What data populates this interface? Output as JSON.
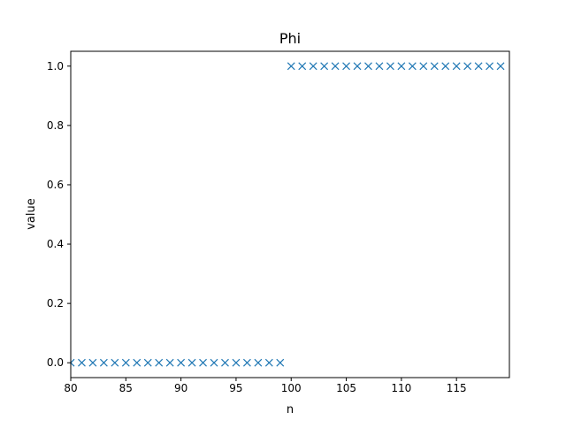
{
  "chart_data": {
    "type": "scatter",
    "title": "Phi",
    "xlabel": "n",
    "ylabel": "value",
    "xlim": [
      80,
      119.8
    ],
    "ylim": [
      -0.05,
      1.05
    ],
    "xticks": [
      80,
      85,
      90,
      95,
      100,
      105,
      110,
      115
    ],
    "yticks": [
      0.0,
      0.2,
      0.4,
      0.6,
      0.8,
      1.0
    ],
    "ytick_labels": [
      "0.0",
      "0.2",
      "0.4",
      "0.6",
      "0.8",
      "1.0"
    ],
    "grid": false,
    "marker": "x",
    "series": [
      {
        "color": "#1f77b4",
        "x": [
          80,
          81,
          82,
          83,
          84,
          85,
          86,
          87,
          88,
          89,
          90,
          91,
          92,
          93,
          94,
          95,
          96,
          97,
          98,
          99,
          100,
          101,
          102,
          103,
          104,
          105,
          106,
          107,
          108,
          109,
          110,
          111,
          112,
          113,
          114,
          115,
          116,
          117,
          118,
          119
        ],
        "y": [
          0,
          0,
          0,
          0,
          0,
          0,
          0,
          0,
          0,
          0,
          0,
          0,
          0,
          0,
          0,
          0,
          0,
          0,
          0,
          0,
          1,
          1,
          1,
          1,
          1,
          1,
          1,
          1,
          1,
          1,
          1,
          1,
          1,
          1,
          1,
          1,
          1,
          1,
          1,
          1
        ]
      }
    ]
  }
}
